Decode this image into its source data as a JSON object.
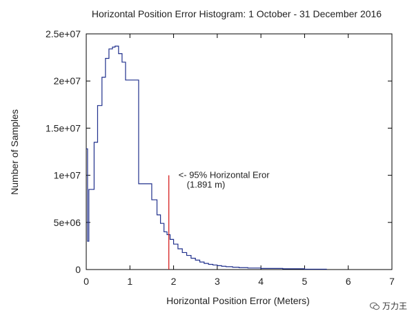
{
  "chart_data": {
    "type": "histogram",
    "title": "Horizontal Position Error Histogram: 1 October - 31 December 2016",
    "xlabel": "Horizontal Position Error (Meters)",
    "ylabel": "Number of Samples",
    "xlim": [
      0,
      7
    ],
    "ylim": [
      0,
      25000000
    ],
    "xticks": [
      "0",
      "1",
      "2",
      "3",
      "4",
      "5",
      "6",
      "7"
    ],
    "yticks": [
      "0",
      "5e+06",
      "1e+07",
      "1.5e+07",
      "2e+07",
      "2.5e+07"
    ],
    "ytick_values": [
      0,
      5000000,
      10000000,
      15000000,
      20000000,
      25000000
    ],
    "series": [
      {
        "color": "#1f2f8c",
        "x": [
          0,
          0.03,
          0.06,
          0.12,
          0.18,
          0.26,
          0.36,
          0.44,
          0.52,
          0.6,
          0.66,
          0.74,
          0.82,
          0.9,
          1.0,
          1.1,
          1.2,
          1.3,
          1.4,
          1.5,
          1.55,
          1.62,
          1.7,
          1.78,
          1.85,
          1.92,
          2.0,
          2.1,
          2.2,
          2.3,
          2.4,
          2.5,
          2.6,
          2.7,
          2.8,
          2.9,
          3.0,
          3.1,
          3.2,
          3.35,
          3.5,
          3.7,
          4.0,
          4.5,
          5.0,
          5.5
        ],
        "y": [
          12800000,
          3000000,
          8500000,
          8500000,
          13500000,
          17400000,
          20400000,
          22400000,
          23400000,
          23600000,
          23700000,
          22900000,
          22000000,
          20100000,
          20100000,
          20100000,
          9100000,
          9100000,
          9100000,
          7400000,
          7400000,
          5800000,
          4900000,
          4000000,
          3700000,
          3200000,
          2700000,
          2200000,
          1800000,
          1500000,
          1200000,
          1000000,
          800000,
          650000,
          550000,
          480000,
          410000,
          350000,
          300000,
          250000,
          200000,
          160000,
          120000,
          80000,
          40000,
          0
        ]
      }
    ],
    "marker": {
      "x": 1.891,
      "y_top": 10000000,
      "color": "#d62020",
      "label_line1": "<- 95% Horizontal Eror",
      "label_line2": "(1.891 m)"
    },
    "grid": false,
    "legend": "none"
  },
  "watermark": {
    "text": "万力王",
    "icon": "wechat-icon"
  }
}
